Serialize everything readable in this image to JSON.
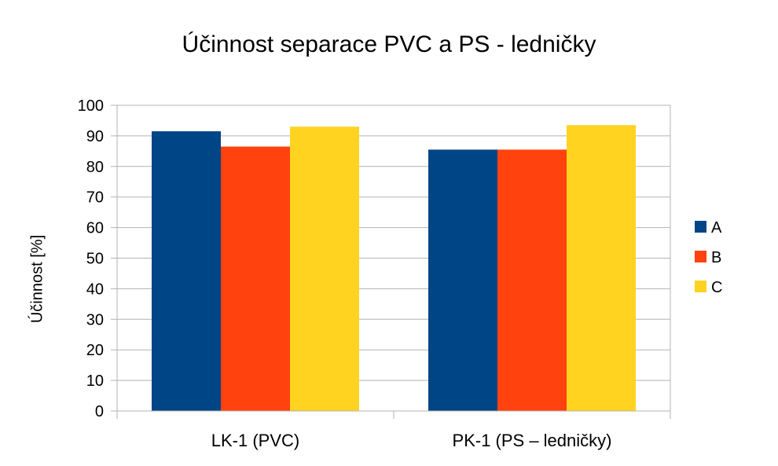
{
  "chart_data": {
    "type": "bar",
    "title": "Účinnost separace PVC a PS - ledničky",
    "xlabel": "",
    "ylabel": "Účinnost [%]",
    "ylim": [
      0,
      100
    ],
    "yticks": [
      0,
      10,
      20,
      30,
      40,
      50,
      60,
      70,
      80,
      90,
      100
    ],
    "grid": true,
    "legend_position": "right",
    "categories": [
      "LK-1 (PVC)",
      "PK-1 (PS – ledničky)"
    ],
    "series": [
      {
        "name": "A",
        "color": "#004586",
        "values": [
          91.5,
          85.5
        ]
      },
      {
        "name": "B",
        "color": "#ff420e",
        "values": [
          86.5,
          85.5
        ]
      },
      {
        "name": "C",
        "color": "#ffd320",
        "values": [
          93.0,
          93.5
        ]
      }
    ]
  }
}
